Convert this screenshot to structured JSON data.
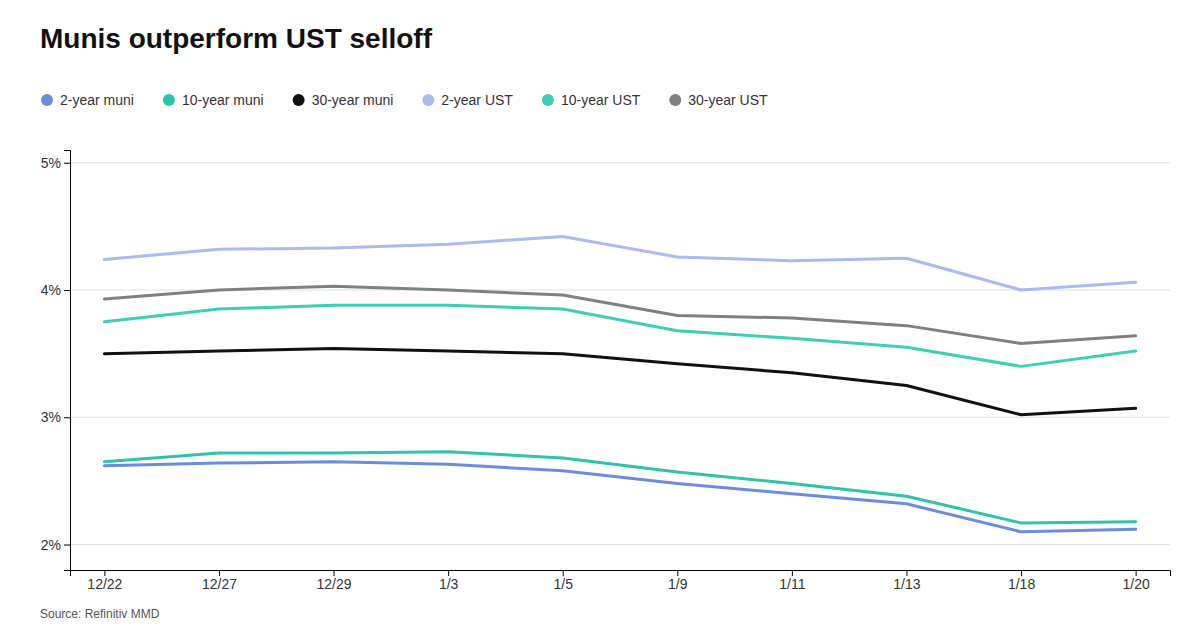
{
  "chart_data": {
    "type": "line",
    "title": "Munis outperform UST selloff",
    "annotations": [
      "Source: Refinitiv MMD"
    ],
    "categories": [
      "12/22",
      "12/27",
      "12/29",
      "1/3",
      "1/5",
      "1/9",
      "1/11",
      "1/13",
      "1/18",
      "1/20"
    ],
    "series": [
      {
        "name": "2-year muni",
        "color": "#6B8CDE",
        "values": [
          2.62,
          2.64,
          2.65,
          2.63,
          2.58,
          2.48,
          2.4,
          2.32,
          2.1,
          2.12
        ]
      },
      {
        "name": "10-year muni",
        "color": "#2DC4A8",
        "values": [
          2.65,
          2.72,
          2.72,
          2.73,
          2.68,
          2.57,
          2.48,
          2.38,
          2.17,
          2.18
        ]
      },
      {
        "name": "30-year muni",
        "color": "#111111",
        "values": [
          3.5,
          3.52,
          3.54,
          3.52,
          3.5,
          3.42,
          3.35,
          3.25,
          3.02,
          3.07
        ]
      },
      {
        "name": "2-year UST",
        "color": "#AABBEE",
        "values": [
          4.24,
          4.32,
          4.33,
          4.36,
          4.42,
          4.26,
          4.23,
          4.25,
          4.0,
          4.06
        ]
      },
      {
        "name": "10-year UST",
        "color": "#3DCFB5",
        "values": [
          3.75,
          3.85,
          3.88,
          3.88,
          3.85,
          3.68,
          3.62,
          3.55,
          3.4,
          3.52
        ]
      },
      {
        "name": "30-year UST",
        "color": "#808080",
        "values": [
          3.93,
          4.0,
          4.03,
          4.0,
          3.96,
          3.8,
          3.78,
          3.72,
          3.58,
          3.64
        ]
      }
    ],
    "ylim": [
      1.8,
      5.1
    ],
    "yticks": [
      {
        "value": 2.0,
        "label": "2%"
      },
      {
        "value": 3.0,
        "label": "3%"
      },
      {
        "value": 4.0,
        "label": "4%"
      },
      {
        "value": 5.0,
        "label": "5%"
      }
    ],
    "grid": "y",
    "legend": "top"
  }
}
